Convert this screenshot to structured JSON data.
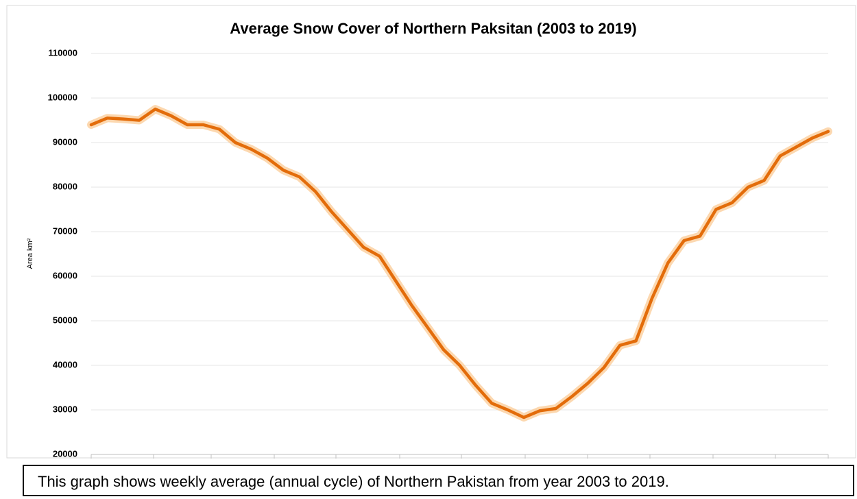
{
  "chart_data": {
    "type": "line",
    "title": "Average  Snow Cover of Northern Paksitan (2003 to 2019)",
    "y_label": "Area km²",
    "categories": [
      null,
      null,
      null,
      null,
      null,
      null,
      null,
      null,
      null,
      null,
      null,
      null,
      null,
      null,
      null,
      null,
      null,
      null,
      null,
      null,
      null,
      null,
      null,
      null,
      null,
      null,
      null,
      null,
      null,
      null,
      null,
      null,
      null,
      null,
      null,
      null,
      null,
      null,
      null,
      null,
      null,
      null,
      null,
      null,
      null,
      null,
      null
    ],
    "series": [
      {
        "name": "Average snow cover",
        "color": "#e36c0a",
        "values": [
          94000,
          95500,
          95300,
          95000,
          97500,
          96000,
          94000,
          94000,
          93000,
          90000,
          88500,
          86500,
          83800,
          82300,
          79000,
          74500,
          70500,
          66500,
          64500,
          59000,
          53500,
          48500,
          43500,
          40000,
          35500,
          31500,
          30000,
          28300,
          29800,
          30300,
          33000,
          36000,
          39500,
          44500,
          45500,
          55000,
          63000,
          68000,
          69000,
          75000,
          76500,
          80000,
          81500,
          87000,
          89000,
          91000,
          92500
        ]
      }
    ],
    "ylim": [
      20000,
      110000
    ],
    "yticks": [
      20000,
      30000,
      40000,
      50000,
      60000,
      70000,
      80000,
      90000,
      100000,
      110000
    ],
    "grid": true
  },
  "caption": "This graph shows weekly average (annual cycle) of Northern Pakistan from year 2003 to 2019."
}
